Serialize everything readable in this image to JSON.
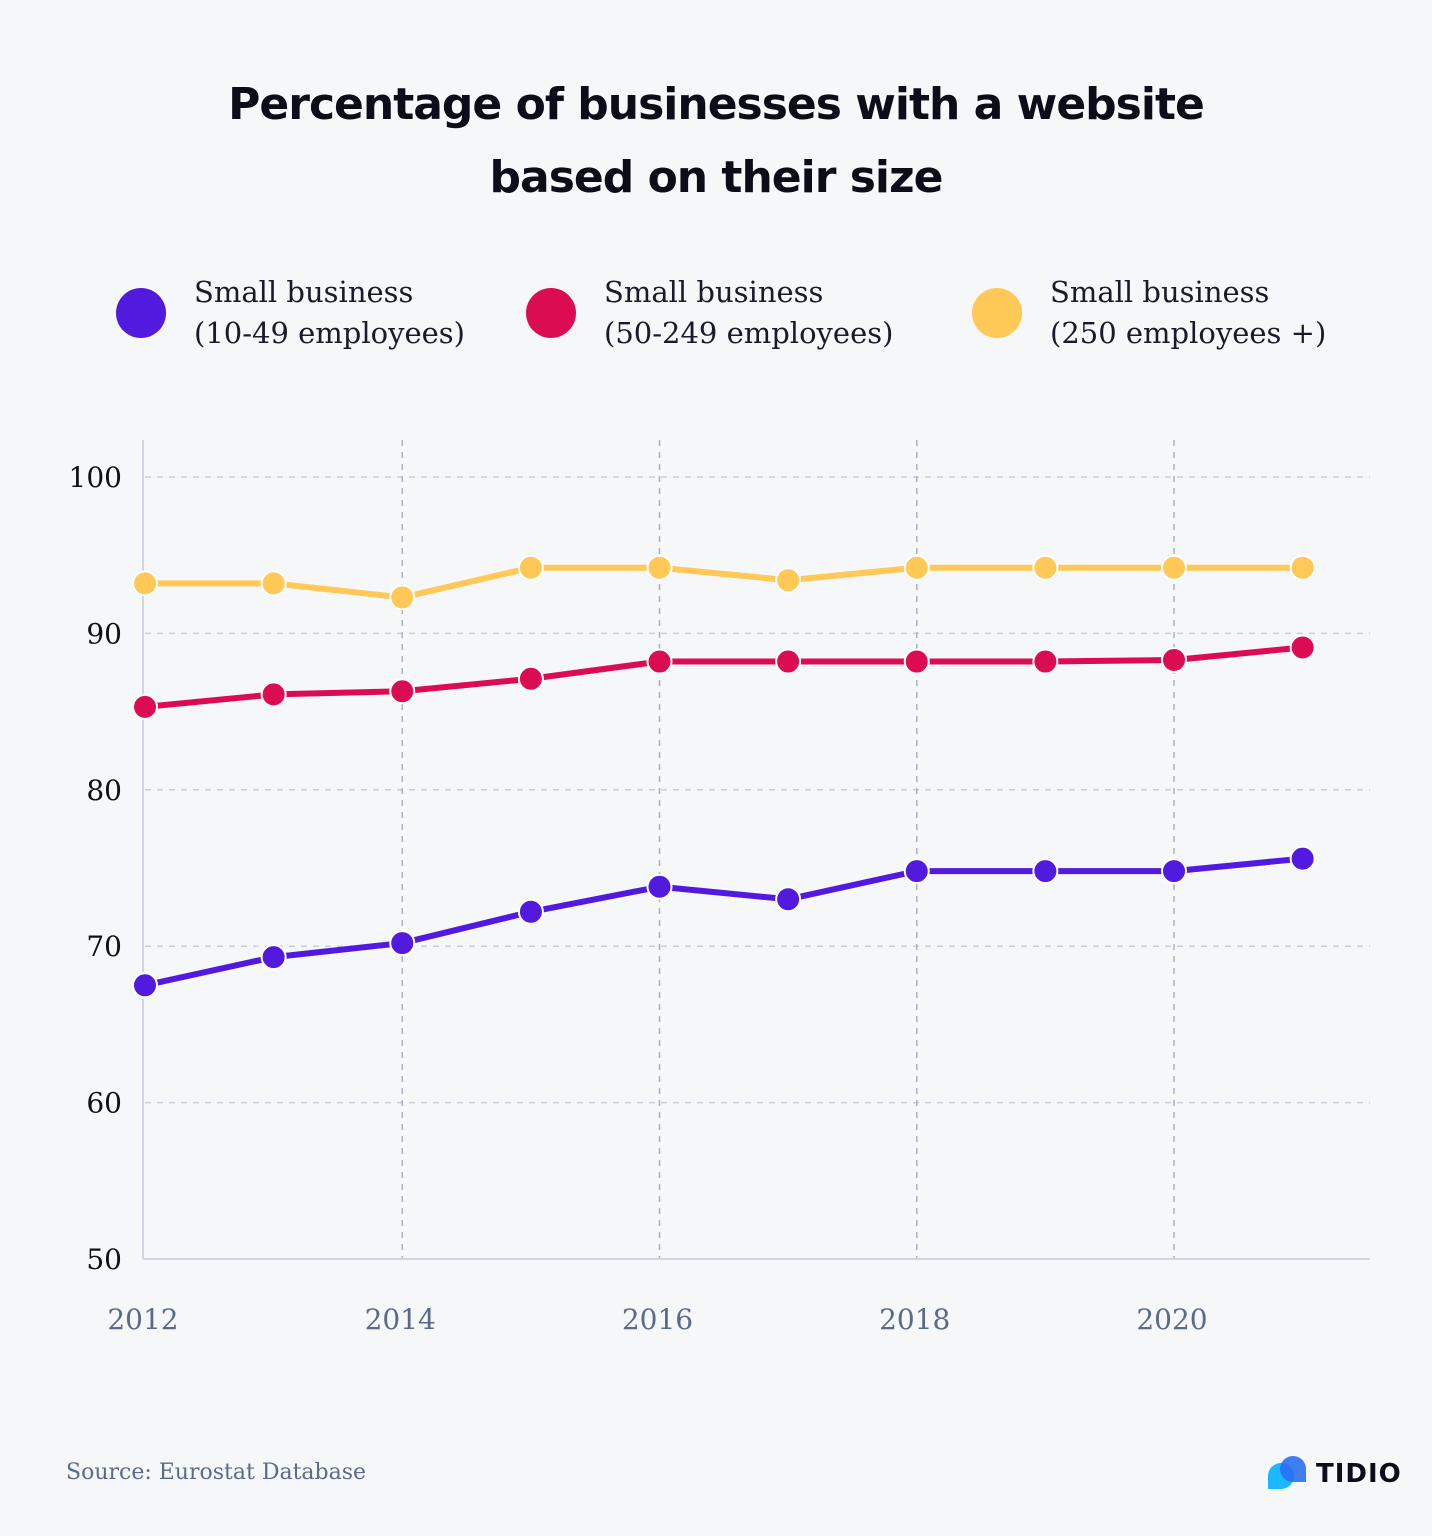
{
  "chart_data": {
    "type": "line",
    "title": "Percentage of businesses with a website based on their size",
    "title_lines": [
      "Percentage of businesses with a website",
      "based on their size"
    ],
    "x": [
      2012,
      2013,
      2014,
      2015,
      2016,
      2017,
      2018,
      2019,
      2020,
      2021
    ],
    "x_ticks": [
      "2012",
      "2014",
      "2016",
      "2018",
      "2020"
    ],
    "y_ticks": [
      "100",
      "90",
      "80",
      "70",
      "60",
      "50"
    ],
    "ylim": [
      50,
      100
    ],
    "grid": "dashed, both axes",
    "legend_placement": "top",
    "series": [
      {
        "name": "Small business (10-49 employees)",
        "label_lines": [
          "Small business",
          "(10-49 employees)"
        ],
        "color": "#5219df",
        "values": [
          67.5,
          69.3,
          70.2,
          72.2,
          73.8,
          73.0,
          74.8,
          74.8,
          74.8,
          75.6
        ]
      },
      {
        "name": "Small business (50-249 employees)",
        "label_lines": [
          "Small business",
          "(50-249 employees)"
        ],
        "color": "#dc0c52",
        "values": [
          85.3,
          86.1,
          86.3,
          87.1,
          88.2,
          88.2,
          88.2,
          88.2,
          88.3,
          89.1
        ]
      },
      {
        "name": "Small business (250 employees +)",
        "label_lines": [
          "Small business",
          "(250 employees +)"
        ],
        "color": "#ffc857",
        "values": [
          93.2,
          93.2,
          92.3,
          94.2,
          94.2,
          93.4,
          94.2,
          94.2,
          94.2,
          94.2
        ]
      }
    ]
  },
  "source": "Source: Eurostat Database",
  "brand": {
    "name": "TIDIO",
    "colors": [
      "#2a6ff5",
      "#1bb8ff"
    ]
  },
  "background": "#f5f7f9"
}
